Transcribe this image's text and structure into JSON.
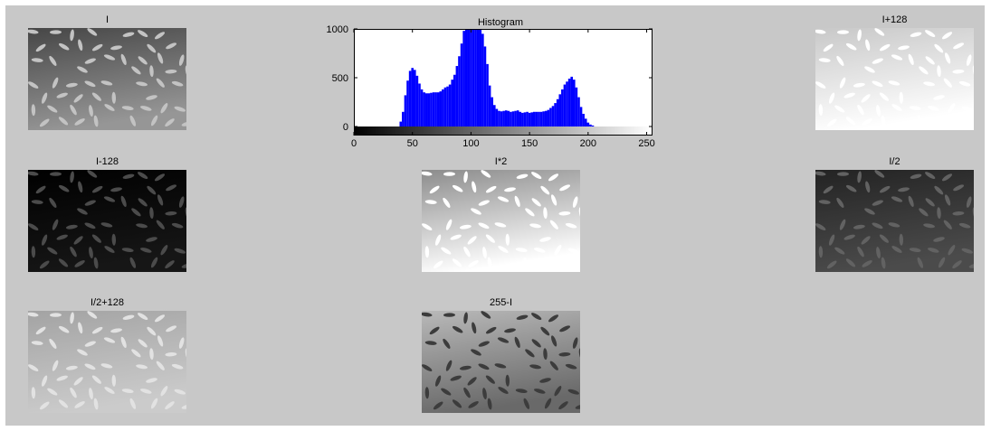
{
  "figure": {
    "background": "#c8c8c8",
    "panels": [
      {
        "title": "I",
        "op": "I"
      },
      {
        "title": "I+128",
        "op": "I+128"
      },
      {
        "title": "I-128",
        "op": "I-128"
      },
      {
        "title": "I*2",
        "op": "I*2"
      },
      {
        "title": "I/2",
        "op": "I/2"
      },
      {
        "title": "I/2+128",
        "op": "I/2+128"
      },
      {
        "title": "255-I",
        "op": "255-I"
      }
    ]
  },
  "chart_data": {
    "type": "bar",
    "title": "Histogram",
    "xlabel": "",
    "ylabel": "",
    "xlim": [
      0,
      255
    ],
    "ylim": [
      0,
      1000
    ],
    "xticks": [
      0,
      50,
      100,
      150,
      200,
      250
    ],
    "yticks": [
      0,
      500,
      1000
    ],
    "bar_color": "#0000ff",
    "colorbar": "gray",
    "grid": false,
    "x": [
      40,
      42,
      44,
      46,
      48,
      50,
      52,
      54,
      56,
      58,
      60,
      62,
      64,
      66,
      68,
      70,
      72,
      74,
      76,
      78,
      80,
      82,
      84,
      86,
      88,
      90,
      92,
      94,
      96,
      98,
      100,
      102,
      104,
      106,
      108,
      110,
      112,
      114,
      116,
      118,
      120,
      122,
      124,
      126,
      128,
      130,
      132,
      134,
      136,
      138,
      140,
      142,
      144,
      146,
      148,
      150,
      152,
      154,
      156,
      158,
      160,
      162,
      164,
      166,
      168,
      170,
      172,
      174,
      176,
      178,
      180,
      182,
      184,
      186,
      188,
      190,
      192,
      194,
      196,
      198,
      200,
      202,
      204
    ],
    "values": [
      50,
      150,
      320,
      470,
      570,
      600,
      580,
      520,
      440,
      380,
      350,
      340,
      340,
      345,
      350,
      350,
      350,
      360,
      380,
      400,
      410,
      430,
      480,
      530,
      620,
      720,
      850,
      980,
      1000,
      1000,
      1000,
      1000,
      1000,
      1000,
      1000,
      950,
      820,
      640,
      420,
      300,
      220,
      180,
      160,
      155,
      160,
      165,
      160,
      150,
      155,
      160,
      165,
      150,
      140,
      145,
      150,
      140,
      145,
      150,
      150,
      150,
      150,
      155,
      160,
      170,
      190,
      210,
      240,
      280,
      330,
      380,
      430,
      460,
      490,
      510,
      480,
      400,
      300,
      200,
      130,
      80,
      40,
      20,
      10
    ]
  }
}
